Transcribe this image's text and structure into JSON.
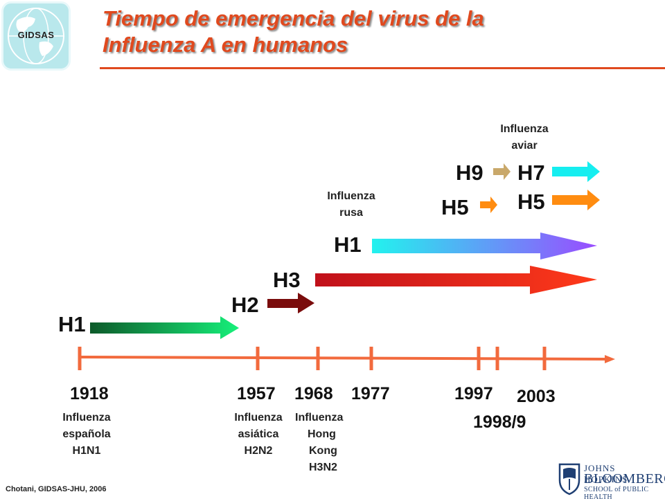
{
  "logo": {
    "label": "GIDSAS"
  },
  "title": {
    "line1": "Tiempo de emergencia del virus de la",
    "line2": "Influenza A en humanos"
  },
  "subtypes": {
    "h1_1918": "H1",
    "h2": "H2",
    "h3": "H3",
    "h1_1977": "H1",
    "h5_1997": "H5",
    "h9": "H9",
    "h7": "H7",
    "h5_2003": "H5"
  },
  "annotations": {
    "rusa": [
      "Influenza",
      "rusa"
    ],
    "aviar": [
      "Influenza",
      "aviar"
    ]
  },
  "years": {
    "y1918": "1918",
    "y1957": "1957",
    "y1968": "1968",
    "y1977": "1977",
    "y1997": "1997",
    "y1998": "1998/9",
    "y2003": "2003"
  },
  "pandemics": {
    "espanola": [
      "Influenza",
      "española",
      "H1N1"
    ],
    "asiatica": [
      "Influenza",
      "asiática",
      "H2N2"
    ],
    "hongkong": [
      "Influenza",
      "Hong",
      "Kong",
      "H3N2"
    ]
  },
  "footer": "Chotani, GIDSAS-JHU,  2006",
  "institution": {
    "line1": "JOHNS HOPKINS",
    "line2": "BLOOMBERG",
    "line3": "SCHOOL of PUBLIC HEALTH"
  },
  "colors": {
    "title": "#e0491e",
    "timeline": "#f26a3d",
    "h1_1918_start": "#0d5a2a",
    "h1_1918_end": "#16f07a",
    "h2": "#7a0c0c",
    "h3_start": "#c0101a",
    "h3_end": "#ff3a1a",
    "h1_1977_start": "#22f2ee",
    "h1_1977_end": "#9a4cff",
    "h9": "#c9a86a",
    "h7": "#16eef0",
    "h5": "#ff8c10"
  }
}
